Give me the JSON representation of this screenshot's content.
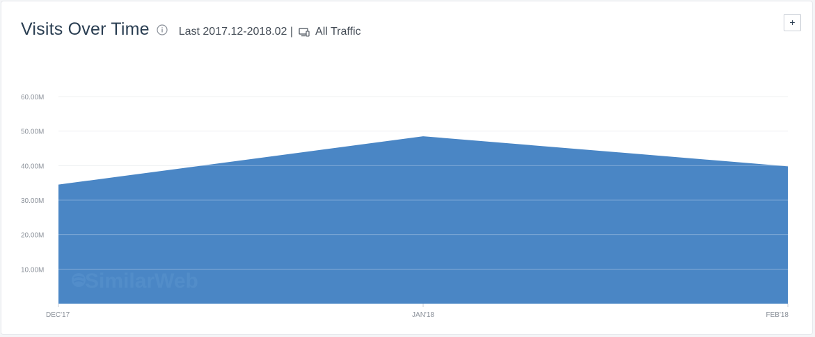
{
  "widget": {
    "title": "Visits Over Time",
    "period": "Last 2017.12-2018.02 |",
    "traffic": "All Traffic",
    "expand_label": "+",
    "watermark": "SimilarWeb",
    "info_icon": "info-icon",
    "device_icon": "desktop-mobile-icon"
  },
  "colors": {
    "area": "#4a86c5",
    "grid": "#e9ebee",
    "tick": "#8a9099"
  },
  "chart_data": {
    "type": "area",
    "categories": [
      "DEC'17",
      "JAN'18",
      "FEB'18"
    ],
    "series": [
      {
        "values": [
          34.5,
          48.5,
          39.8
        ]
      }
    ],
    "y_ticks": [
      "10.00M",
      "20.00M",
      "30.00M",
      "40.00M",
      "50.00M",
      "60.00M"
    ],
    "y_tick_values": [
      10,
      20,
      30,
      40,
      50,
      60
    ],
    "ylim": [
      0,
      60
    ],
    "title": "Visits Over Time",
    "xlabel": "",
    "ylabel": "",
    "grid": true,
    "legend": "none"
  }
}
